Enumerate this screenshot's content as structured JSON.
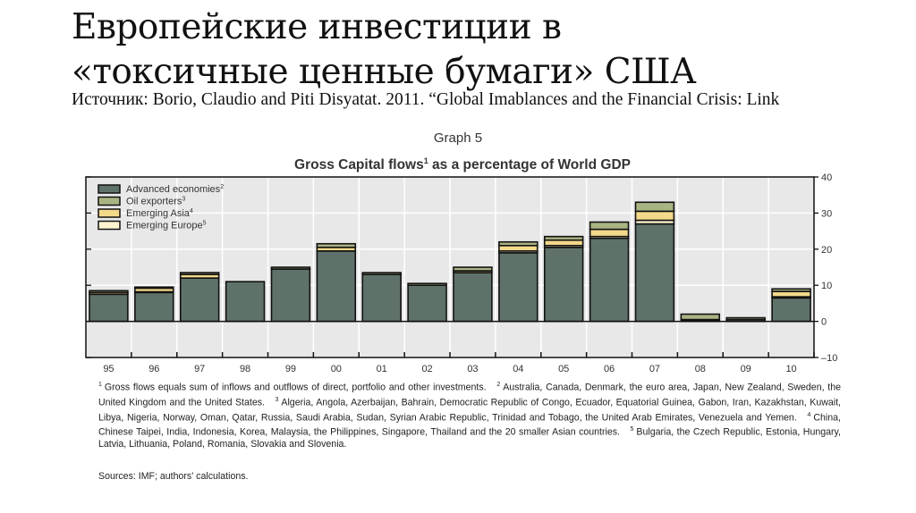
{
  "slide": {
    "title_line1": "Европейские инвестиции в",
    "title_line2": "«токсичные ценные бумаги» США",
    "source": "Источник: Borio, Claudio and Piti Disyatat. 2011. “Global Imablances and the Financial Crisis: Link"
  },
  "chart_data": {
    "type": "bar",
    "stacked": true,
    "graph_label": "Graph 5",
    "title": "Gross Capital flows",
    "title_sup": "1",
    "title_rest": " as a percentage of World GDP",
    "categories": [
      "95",
      "96",
      "97",
      "98",
      "99",
      "00",
      "01",
      "02",
      "03",
      "04",
      "05",
      "06",
      "07",
      "08",
      "09",
      "10"
    ],
    "series": [
      {
        "name": "Advanced economies",
        "sup": "2",
        "color": "#5f7269",
        "values": [
          7.5,
          8,
          12,
          11,
          14.5,
          19.5,
          13,
          10,
          13.5,
          19,
          20.5,
          23,
          27,
          0.3,
          0.5,
          6.5
        ]
      },
      {
        "name": "Emerging Europe",
        "sup": "5",
        "color": "#fdf3d0",
        "values": [
          0,
          0.2,
          0,
          0,
          0,
          0,
          0,
          0,
          0,
          0.5,
          0.5,
          0.5,
          1,
          0,
          0,
          0.3
        ]
      },
      {
        "name": "Emerging Asia",
        "sup": "4",
        "color": "#f3d98a",
        "values": [
          0.5,
          1,
          1,
          0,
          0,
          1,
          0,
          0,
          0.5,
          1.5,
          1.5,
          2,
          2.5,
          0.2,
          0,
          1.5
        ]
      },
      {
        "name": "Oil exporters",
        "sup": "3",
        "color": "#a9b483",
        "values": [
          0.5,
          0.3,
          0.5,
          0,
          0.5,
          1,
          0.5,
          0.5,
          1,
          1,
          1,
          2,
          2.5,
          1.5,
          0.5,
          0.7
        ]
      }
    ],
    "legend_order": [
      "Advanced economies",
      "Oil exporters",
      "Emerging Asia",
      "Emerging Europe"
    ],
    "legend_position": "top-left",
    "ylim": [
      -10,
      40
    ],
    "yticks": [
      "40",
      "30",
      "20",
      "10",
      "0",
      "–10"
    ],
    "y_axis_side": "right",
    "grid": true,
    "plot_bg": "#e8e8e8"
  },
  "notes": [
    {
      "sup": "1",
      "text": "Gross flows equals sum of inflows and outflows of direct, portfolio and other investments."
    },
    {
      "sup": "2",
      "text": "Australia, Canada, Denmark, the euro area, Japan, New Zealand, Sweden, the United Kingdom and the United States."
    },
    {
      "sup": "3",
      "text": "Algeria, Angola, Azerbaijan, Bahrain, Democratic Republic of Congo, Ecuador, Equatorial Guinea, Gabon, Iran, Kazakhstan, Kuwait, Libya, Nigeria, Norway, Oman, Qatar, Russia, Saudi Arabia, Sudan, Syrian Arabic Republic, Trinidad and Tobago, the United Arab Emirates, Venezuela and Yemen."
    },
    {
      "sup": "4",
      "text": "China, Chinese Taipei, India, Indonesia, Korea, Malaysia, the Philippines, Singapore, Thailand and the 20 smaller Asian countries."
    },
    {
      "sup": "5",
      "text": "Bulgaria, the Czech Republic, Estonia, Hungary, Latvia, Lithuania, Poland, Romania, Slovakia and Slovenia."
    }
  ],
  "sources": "Sources: IMF; authors' calculations."
}
